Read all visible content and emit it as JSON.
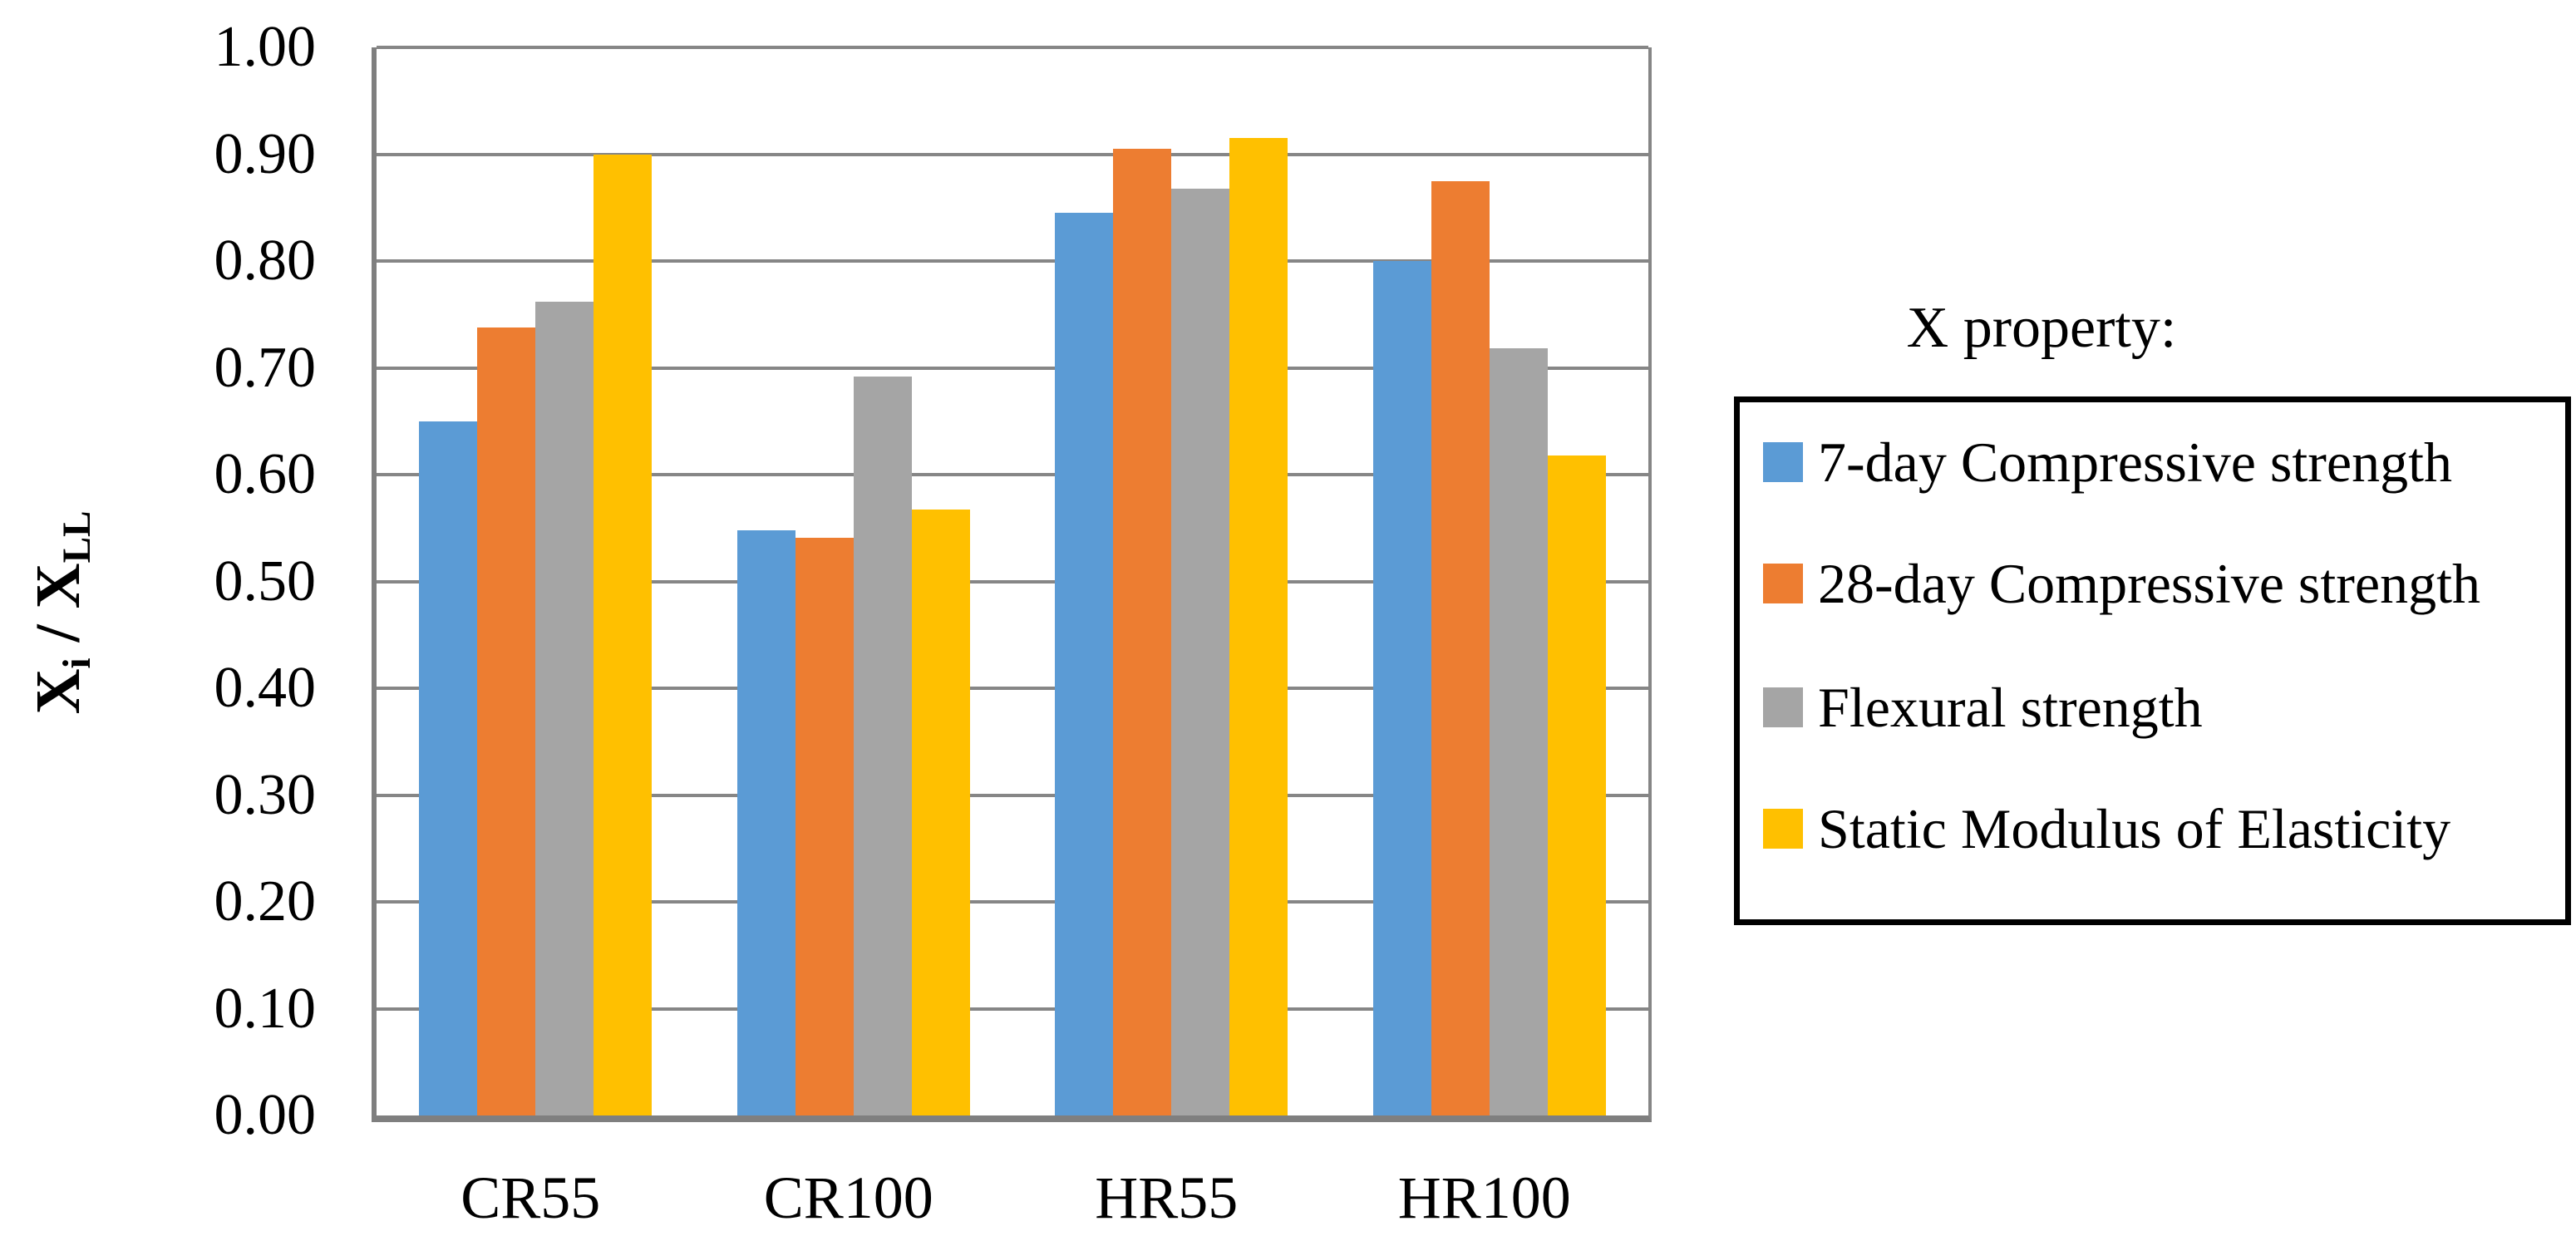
{
  "figure": {
    "y_axis_label": {
      "base1": "X",
      "sub1": "i",
      "separator": " / ",
      "base2": "X",
      "sub2": "LL"
    },
    "y_ticks": [
      "1.00",
      "0.90",
      "0.80",
      "0.70",
      "0.60",
      "0.50",
      "0.40",
      "0.30",
      "0.20",
      "0.10",
      "0.00"
    ],
    "legend": {
      "title": "X property:",
      "items": [
        {
          "label": "7-day Compressive strength",
          "color": "#5B9BD5"
        },
        {
          "label": "28-day Compressive strength",
          "color": "#ED7D31"
        },
        {
          "label": "Flexural strength",
          "color": "#A5A5A5"
        },
        {
          "label": "Static Modulus of Elasticity",
          "color": "#FFC000"
        }
      ]
    },
    "colors": {
      "gridline": "#868686",
      "axis": "#7F7F7F",
      "text": "#000000",
      "background": "#FFFFFF",
      "legend_border": "#000000"
    }
  },
  "chart_data": {
    "type": "bar",
    "title": "",
    "categories": [
      "CR55",
      "CR100",
      "HR55",
      "HR100"
    ],
    "series": [
      {
        "name": "7-day Compressive strength",
        "color": "#5B9BD5",
        "values": [
          0.65,
          0.548,
          0.845,
          0.8
        ]
      },
      {
        "name": "28-day Compressive strength",
        "color": "#ED7D31",
        "values": [
          0.738,
          0.541,
          0.905,
          0.875
        ]
      },
      {
        "name": "Flexural strength",
        "color": "#A5A5A5",
        "values": [
          0.762,
          0.692,
          0.868,
          0.718
        ]
      },
      {
        "name": "Static Modulus of Elasticity",
        "color": "#FFC000",
        "values": [
          0.9,
          0.567,
          0.915,
          0.618
        ]
      }
    ],
    "xlabel": "",
    "ylabel": "Xi / XLL",
    "ylim": [
      0.0,
      1.0
    ],
    "ytick_step": 0.1,
    "ytick_format": "0.00",
    "grid": true,
    "legend_title": "X property:",
    "legend_position": "right"
  }
}
